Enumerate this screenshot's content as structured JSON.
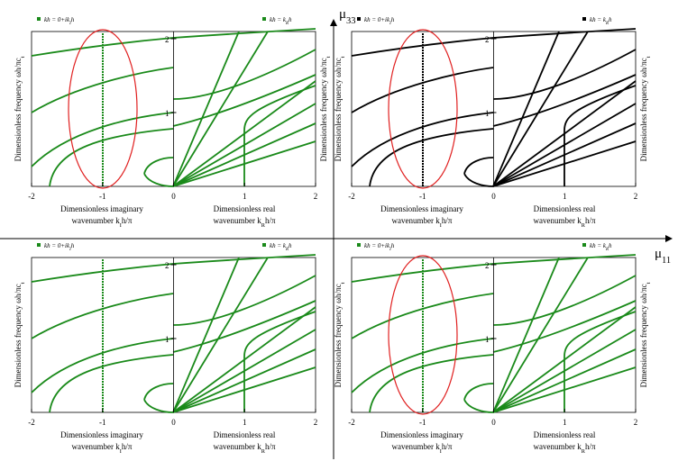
{
  "axes": {
    "vertical": {
      "main": "μ",
      "sub": "33"
    },
    "horizontal": {
      "main": "μ",
      "sub": "11"
    }
  },
  "panels": [
    {
      "legend_left": {
        "main": "kh = 0+ik",
        "sub": "I",
        "tail": "h"
      },
      "legend_right": {
        "main": "kh = k",
        "sub": "R",
        "tail": "h"
      },
      "x_tick_labels": [
        "-2",
        "-1",
        "0",
        "1",
        "2"
      ],
      "y_tick_labels": [
        "1",
        "2"
      ],
      "y_label": {
        "main": "Dimensionless frequency  ωh/πc",
        "sub": "t"
      },
      "y_label_right": {
        "main": "Dimensionless frequency  ωh/πc",
        "sub": "t"
      },
      "x_label_left": {
        "line1": "Dimensionless imaginary",
        "main": "wavenumber  k",
        "sub": "I",
        "tail": "h/π"
      },
      "x_label_right": {
        "line1": "Dimensionless real",
        "main": "wavenumber  k",
        "sub": "R",
        "tail": "h/π"
      }
    },
    {
      "legend_left": {
        "main": "kh = 0+ik",
        "sub": "I",
        "tail": "h"
      },
      "legend_right": {
        "main": "kh = k",
        "sub": "R",
        "tail": "h"
      },
      "x_tick_labels": [
        "-2",
        "-1",
        "0",
        "1",
        "2"
      ],
      "y_tick_labels": [
        "1",
        "2"
      ],
      "y_label": {
        "main": "Dimensionless frequency  ωh/πc",
        "sub": "t"
      },
      "y_label_right": {
        "main": "Dimensionless frequency  ωh/πc",
        "sub": "t"
      },
      "x_label_left": {
        "line1": "Dimensionless imaginary",
        "main": "wavenumber  k",
        "sub": "I",
        "tail": "h/π"
      },
      "x_label_right": {
        "line1": "Dimensionless real",
        "main": "wavenumber  k",
        "sub": "R",
        "tail": "h/π"
      }
    },
    {
      "legend_left": {
        "main": "kh = 0+ik",
        "sub": "I",
        "tail": "h"
      },
      "legend_right": {
        "main": "kh = k",
        "sub": "R",
        "tail": "h"
      },
      "x_tick_labels": [
        "-2",
        "-1",
        "0",
        "1",
        "2"
      ],
      "y_tick_labels": [
        "1",
        "2"
      ],
      "y_label": {
        "main": "Dimensionless frequency  ωh/πc",
        "sub": "t"
      },
      "x_label_left": {
        "line1": "Dimensionless imaginary",
        "main": "wavenumber  k",
        "sub": "I",
        "tail": "h/π"
      },
      "x_label_right": {
        "line1": "Dimensionless real",
        "main": "wavenumber  k",
        "sub": "R",
        "tail": "h/π"
      }
    },
    {
      "legend_left": {
        "main": "kh = 0+ik",
        "sub": "I",
        "tail": "h"
      },
      "legend_right": {
        "main": "kh = k",
        "sub": "R",
        "tail": "h"
      },
      "x_tick_labels": [
        "-2",
        "-1",
        "0",
        "1",
        "2"
      ],
      "y_tick_labels": [
        "1",
        "2"
      ],
      "y_label": {
        "main": "Dimensionless frequency  ωh/πc",
        "sub": "t"
      },
      "y_label_right": {
        "main": "Dimensionless frequency  ωh/πc",
        "sub": "t"
      },
      "x_label_left": {
        "line1": "Dimensionless imaginary",
        "main": "wavenumber  k",
        "sub": "I",
        "tail": "h/π"
      },
      "x_label_right": {
        "line1": "Dimensionless real",
        "main": "wavenumber  k",
        "sub": "R",
        "tail": "h/π"
      }
    }
  ]
}
